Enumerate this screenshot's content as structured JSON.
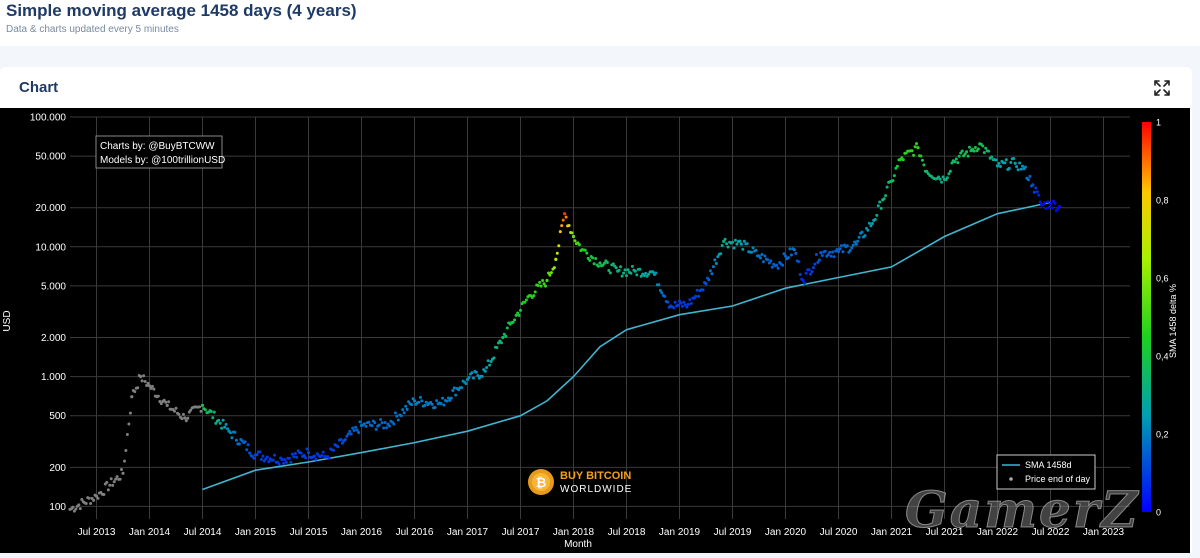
{
  "page": {
    "title": "Simple moving average 1458 days (4 years)",
    "subtitle": "Data & charts updated every 5 minutes"
  },
  "card": {
    "title": "Chart"
  },
  "credits": {
    "line1": "Charts by: @BuyBTCWW",
    "line2": "Models by: @100trillionUSD"
  },
  "logo": {
    "line1": "BUY BITCOIN",
    "line2": "WORLDWIDE"
  },
  "watermark": "GamerZ",
  "colors": {
    "sma": "#3fb6d1",
    "early_points": "#7f7f7f",
    "background": "#000000"
  },
  "chart_data": {
    "type": "scatter",
    "xlabel": "Month",
    "ylabel": "USD",
    "yscale": "log",
    "ylim": [
      80,
      100000
    ],
    "xlim": [
      "2013-04",
      "2023-04"
    ],
    "x_ticks": [
      "Jul 2013",
      "Jan 2014",
      "Jul 2014",
      "Jan 2015",
      "Jul 2015",
      "Jan 2016",
      "Jul 2016",
      "Jan 2017",
      "Jul 2017",
      "Jan 2018",
      "Jul 2018",
      "Jan 2019",
      "Jul 2019",
      "Jan 2020",
      "Jul 2020",
      "Jan 2021",
      "Jul 2021",
      "Jan 2022",
      "Jul 2022",
      "Jan 2023"
    ],
    "x_tick_dates": [
      "2013-07",
      "2014-01",
      "2014-07",
      "2015-01",
      "2015-07",
      "2016-01",
      "2016-07",
      "2017-01",
      "2017-07",
      "2018-01",
      "2018-07",
      "2019-01",
      "2019-07",
      "2020-01",
      "2020-07",
      "2021-01",
      "2021-07",
      "2022-01",
      "2022-07",
      "2023-01"
    ],
    "y_ticks": [
      100,
      200,
      500,
      1000,
      2000,
      5000,
      10000,
      20000,
      50000,
      100000
    ],
    "y_tick_labels": [
      "100",
      "200",
      "500",
      "1.000",
      "2.000",
      "5.000",
      "10.000",
      "20.000",
      "50.000",
      "100.000"
    ],
    "colorbar": {
      "title": "SMA 1458 delta %",
      "ticks": [
        0,
        0.2,
        0.4,
        0.6,
        0.8,
        1
      ],
      "tick_labels": [
        "0",
        "0,2",
        "0,4",
        "0,6",
        "0,8",
        "1"
      ]
    },
    "legend": {
      "position": "bottom-right",
      "entries": [
        "SMA 1458d",
        "Price end of day"
      ]
    },
    "series": [
      {
        "name": "SMA 1458d",
        "kind": "line",
        "x": [
          "2014-07",
          "2015-01",
          "2015-07",
          "2016-01",
          "2016-07",
          "2017-01",
          "2017-07",
          "2017-10",
          "2018-01",
          "2018-04",
          "2018-07",
          "2019-01",
          "2019-07",
          "2020-01",
          "2020-07",
          "2021-01",
          "2021-07",
          "2022-01",
          "2022-07"
        ],
        "y": [
          135,
          190,
          220,
          260,
          310,
          380,
          500,
          650,
          1000,
          1700,
          2300,
          3000,
          3500,
          4800,
          5800,
          7000,
          12000,
          18000,
          22000
        ]
      },
      {
        "name": "Price end of day",
        "kind": "scatter",
        "x": [
          "2013-04",
          "2013-07",
          "2013-10",
          "2013-11",
          "2013-12",
          "2014-01",
          "2014-03",
          "2014-05",
          "2014-07",
          "2014-10",
          "2015-01",
          "2015-04",
          "2015-07",
          "2015-09",
          "2015-11",
          "2016-01",
          "2016-04",
          "2016-07",
          "2016-10",
          "2017-01",
          "2017-03",
          "2017-05",
          "2017-06",
          "2017-08",
          "2017-10",
          "2017-11",
          "2017-12",
          "2018-01",
          "2018-02",
          "2018-04",
          "2018-06",
          "2018-08",
          "2018-10",
          "2018-12",
          "2019-02",
          "2019-04",
          "2019-06",
          "2019-08",
          "2019-10",
          "2019-12",
          "2020-02",
          "2020-03",
          "2020-05",
          "2020-07",
          "2020-09",
          "2020-11",
          "2020-12",
          "2021-01",
          "2021-02",
          "2021-04",
          "2021-05",
          "2021-07",
          "2021-08",
          "2021-10",
          "2021-11",
          "2022-01",
          "2022-03",
          "2022-04",
          "2022-05",
          "2022-06",
          "2022-07",
          "2022-08"
        ],
        "y": [
          95,
          120,
          180,
          700,
          1000,
          850,
          600,
          480,
          600,
          380,
          250,
          230,
          260,
          240,
          320,
          420,
          430,
          650,
          620,
          950,
          1100,
          2000,
          2600,
          4200,
          5500,
          8000,
          18000,
          12000,
          9500,
          7500,
          6500,
          6500,
          6400,
          3500,
          3600,
          5200,
          11000,
          10500,
          8500,
          7200,
          9500,
          5500,
          9000,
          9200,
          10500,
          16000,
          23000,
          32000,
          47000,
          58000,
          38000,
          33000,
          46000,
          55000,
          62000,
          42000,
          44000,
          40000,
          30000,
          21000,
          21500,
          20500
        ],
        "delta": [
          0.05,
          0.05,
          0.05,
          0.05,
          0.05,
          0.05,
          0.05,
          0.05,
          0.4,
          0.22,
          0.1,
          0.08,
          0.1,
          0.08,
          0.12,
          0.17,
          0.16,
          0.2,
          0.18,
          0.22,
          0.24,
          0.36,
          0.4,
          0.45,
          0.5,
          0.65,
          0.95,
          0.55,
          0.45,
          0.38,
          0.32,
          0.3,
          0.26,
          0.1,
          0.08,
          0.12,
          0.3,
          0.26,
          0.18,
          0.14,
          0.18,
          0.05,
          0.14,
          0.15,
          0.18,
          0.26,
          0.32,
          0.35,
          0.45,
          0.48,
          0.35,
          0.3,
          0.36,
          0.38,
          0.4,
          0.26,
          0.25,
          0.22,
          0.12,
          0.02,
          0.02,
          0.01
        ]
      }
    ]
  }
}
